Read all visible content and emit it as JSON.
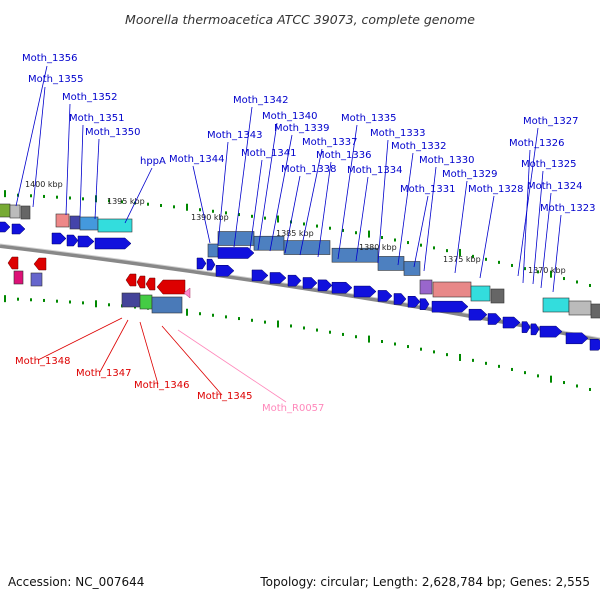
{
  "title": "Moorella thermoacetica ATCC 39073, complete genome",
  "footer": {
    "accession": "Accession: NC_007644",
    "stats": "Topology: circular; Length: 2,628,784 bp; Genes: 2,555"
  },
  "colors": {
    "forward_label": "#0000cc",
    "reverse_label": "#dd0000",
    "rna_label": "#ff88bb",
    "kb_tick": "#008800",
    "backbone": "#888888"
  },
  "scale_labels": [
    "1400 kbp",
    "1395 kbp",
    "1390 kbp",
    "1385 kbp",
    "1380 kbp",
    "1375 kbp",
    "1370 kbp"
  ],
  "forward_genes": [
    "Moth_1356",
    "Moth_1355",
    "Moth_1352",
    "Moth_1351",
    "Moth_1350",
    "hppA",
    "Moth_1344",
    "Moth_1343",
    "Moth_1342",
    "Moth_1341",
    "Moth_1340",
    "Moth_1339",
    "Moth_1338",
    "Moth_1337",
    "Moth_1336",
    "Moth_1335",
    "Moth_1334",
    "Moth_1333",
    "Moth_1332",
    "Moth_1331",
    "Moth_1330",
    "Moth_1329",
    "Moth_1328",
    "Moth_1327",
    "Moth_1326",
    "Moth_1325",
    "Moth_1324",
    "Moth_1323"
  ],
  "reverse_genes": [
    "Moth_1348",
    "Moth_1347",
    "Moth_1346",
    "Moth_1345"
  ],
  "rna_genes": [
    "Moth_R0057"
  ]
}
